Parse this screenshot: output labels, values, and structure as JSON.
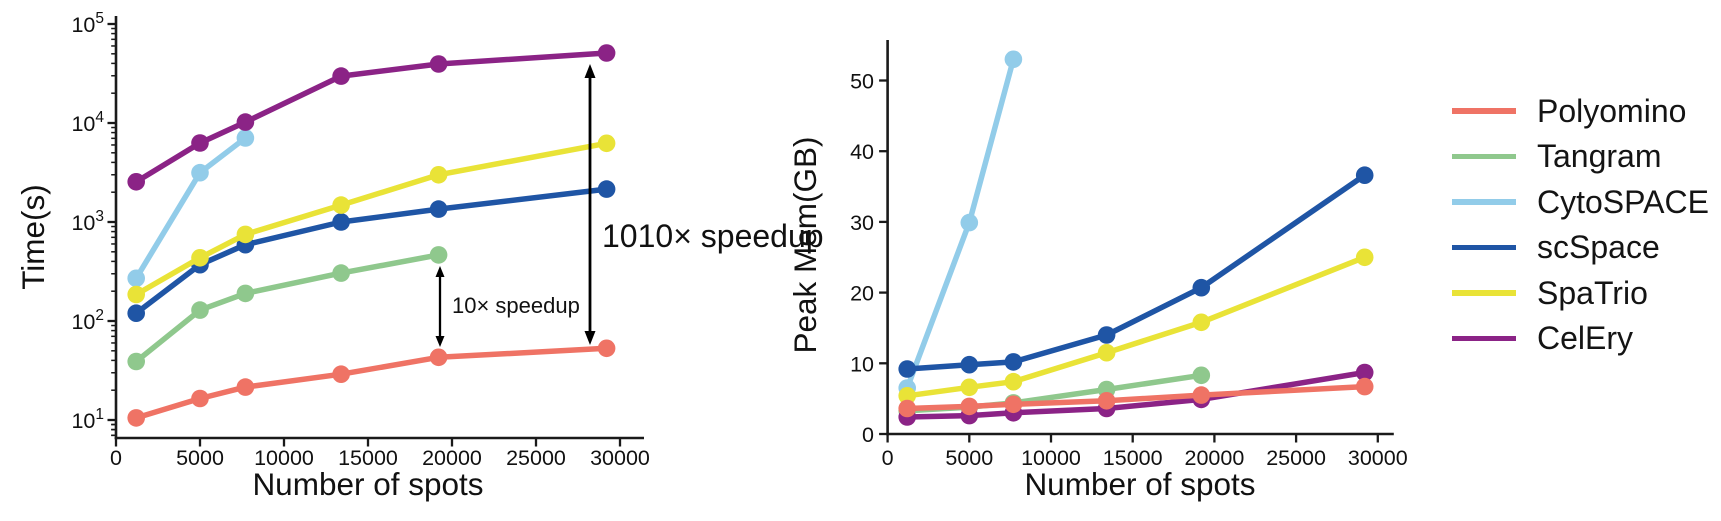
{
  "figure": {
    "background": "#FFFFFF"
  },
  "colors": {
    "Polyomino": "#EF7365",
    "Tangram": "#8FC88D",
    "CytoSPACE": "#92CCE9",
    "scSpace": "#1F55A5",
    "SpaTrio": "#E9E337",
    "CelEry": "#8B2386",
    "axis": "#1A1A1A",
    "text": "#111111",
    "annotation_arrow": "#000000"
  },
  "legend": {
    "items": [
      {
        "label": "Polyomino"
      },
      {
        "label": "Tangram"
      },
      {
        "label": "CytoSPACE"
      },
      {
        "label": "scSpace"
      },
      {
        "label": "SpaTrio"
      },
      {
        "label": "CelEry"
      }
    ]
  },
  "chart_data": [
    {
      "type": "line",
      "title": "",
      "xlabel": "Number of spots",
      "ylabel": "Time(s)",
      "xscale": "linear",
      "yscale": "log",
      "xlim": [
        0,
        31500
      ],
      "ylim": [
        6.5,
        130000
      ],
      "xticks": [
        0,
        5000,
        10000,
        15000,
        20000,
        25000,
        30000
      ],
      "yticks": [
        10,
        100,
        1000,
        10000,
        100000
      ],
      "grid": false,
      "legend_position": "outside-right",
      "x": [
        1200,
        5000,
        7700,
        13400,
        19200,
        29200
      ],
      "series": [
        {
          "name": "Polyomino",
          "values": [
            10.5,
            16.5,
            21.5,
            29,
            43,
            53
          ]
        },
        {
          "name": "Tangram",
          "values": [
            39,
            129,
            190,
            305,
            465
          ]
        },
        {
          "name": "CytoSPACE",
          "values": [
            270,
            3150,
            7050
          ]
        },
        {
          "name": "scSpace",
          "values": [
            120,
            370,
            590,
            1000,
            1350,
            2150
          ]
        },
        {
          "name": "SpaTrio",
          "values": [
            185,
            435,
            750,
            1480,
            3000,
            6240
          ]
        },
        {
          "name": "CelEry",
          "values": [
            2550,
            6280,
            10200,
            29800,
            39400,
            50900
          ]
        }
      ],
      "annotations": [
        {
          "id": "big",
          "text": "1010× speedup"
        },
        {
          "id": "small",
          "text": "10× speedup"
        }
      ]
    },
    {
      "type": "line",
      "title": "",
      "xlabel": "Number of spots",
      "ylabel": "Peak Mem(GB)",
      "xscale": "linear",
      "yscale": "linear",
      "xlim": [
        0,
        31500
      ],
      "ylim": [
        0,
        55.5
      ],
      "xticks": [
        0,
        5000,
        10000,
        15000,
        20000,
        25000,
        30000
      ],
      "yticks": [
        0,
        10,
        20,
        30,
        40,
        50
      ],
      "grid": false,
      "x": [
        1200,
        5000,
        7700,
        13400,
        19200,
        29200
      ],
      "series": [
        {
          "name": "Polyomino",
          "values": [
            3.6,
            3.9,
            4.2,
            4.7,
            5.5,
            6.7
          ]
        },
        {
          "name": "Tangram",
          "values": [
            3.3,
            3.8,
            4.4,
            6.3,
            8.3
          ]
        },
        {
          "name": "CytoSPACE",
          "values": [
            6.5,
            29.9,
            53.0
          ]
        },
        {
          "name": "scSpace",
          "values": [
            9.2,
            9.8,
            10.2,
            14.0,
            20.7,
            36.6
          ]
        },
        {
          "name": "SpaTrio",
          "values": [
            5.4,
            6.6,
            7.4,
            11.5,
            15.8,
            25.0
          ]
        },
        {
          "name": "CelEry",
          "values": [
            2.4,
            2.6,
            3.0,
            3.6,
            4.9,
            8.7
          ]
        }
      ],
      "annotations": []
    }
  ]
}
